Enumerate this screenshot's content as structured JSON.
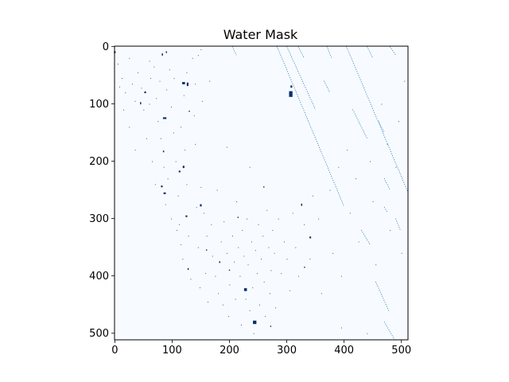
{
  "chart_data": {
    "type": "heatmap",
    "title": "Water Mask",
    "xlabel": "",
    "ylabel": "",
    "x_ticks": [
      0,
      100,
      200,
      300,
      400,
      500
    ],
    "y_ticks": [
      0,
      100,
      200,
      300,
      400,
      500
    ],
    "xlim": [
      -0.5,
      511.5
    ],
    "ylim": [
      511.5,
      -0.5
    ],
    "image_size": [
      512,
      512
    ],
    "colormap": "Blues",
    "colors": {
      "background": "#f7fbff",
      "water": "#08306b",
      "mid": "#2171b5"
    },
    "grid": false,
    "legend": "none",
    "blobs": [
      {
        "x": 307,
        "y": 83,
        "w": 6,
        "h": 10
      },
      {
        "x": 308,
        "y": 70,
        "w": 3,
        "h": 4
      },
      {
        "x": 244,
        "y": 481,
        "w": 6,
        "h": 6
      },
      {
        "x": 228,
        "y": 424,
        "w": 5,
        "h": 5
      },
      {
        "x": 87,
        "y": 125,
        "w": 6,
        "h": 3
      },
      {
        "x": 120,
        "y": 64,
        "w": 5,
        "h": 4
      },
      {
        "x": 127,
        "y": 66,
        "w": 3,
        "h": 6
      },
      {
        "x": 87,
        "y": 256,
        "w": 4,
        "h": 3
      },
      {
        "x": 82,
        "y": 244,
        "w": 3,
        "h": 3
      },
      {
        "x": 120,
        "y": 210,
        "w": 3,
        "h": 4
      },
      {
        "x": 113,
        "y": 218,
        "w": 3,
        "h": 3
      },
      {
        "x": 150,
        "y": 277,
        "w": 3,
        "h": 4
      },
      {
        "x": 125,
        "y": 296,
        "w": 3,
        "h": 3
      },
      {
        "x": 53,
        "y": 80,
        "w": 3,
        "h": 3
      },
      {
        "x": 45,
        "y": 99,
        "w": 2,
        "h": 4
      },
      {
        "x": 326,
        "y": 276,
        "w": 2,
        "h": 4
      },
      {
        "x": 341,
        "y": 333,
        "w": 3,
        "h": 3
      },
      {
        "x": 331,
        "y": 385,
        "w": 2,
        "h": 2
      },
      {
        "x": 272,
        "y": 488,
        "w": 2,
        "h": 2
      },
      {
        "x": 85,
        "y": 183,
        "w": 2,
        "h": 3
      },
      {
        "x": 0,
        "y": 10,
        "w": 3,
        "h": 3
      },
      {
        "x": 83,
        "y": 14,
        "w": 2,
        "h": 4
      },
      {
        "x": 90,
        "y": 10,
        "w": 2,
        "h": 3
      },
      {
        "x": 183,
        "y": 376,
        "w": 2,
        "h": 3
      },
      {
        "x": 200,
        "y": 390,
        "w": 2,
        "h": 2
      },
      {
        "x": 160,
        "y": 355,
        "w": 2,
        "h": 2
      },
      {
        "x": 215,
        "y": 298,
        "w": 2,
        "h": 2
      },
      {
        "x": 128,
        "y": 388,
        "w": 2,
        "h": 3
      },
      {
        "x": 260,
        "y": 245,
        "w": 2,
        "h": 2
      },
      {
        "x": 130,
        "y": 113,
        "w": 2,
        "h": 2
      }
    ],
    "streaks": [
      {
        "x1": 283,
        "y1": 0,
        "x2": 400,
        "y2": 279
      },
      {
        "x1": 404,
        "y1": 0,
        "x2": 511,
        "y2": 253
      },
      {
        "x1": 300,
        "y1": 0,
        "x2": 350,
        "y2": 110
      },
      {
        "x1": 320,
        "y1": 0,
        "x2": 330,
        "y2": 20
      },
      {
        "x1": 370,
        "y1": 0,
        "x2": 378,
        "y2": 20
      },
      {
        "x1": 440,
        "y1": 0,
        "x2": 450,
        "y2": 20
      },
      {
        "x1": 480,
        "y1": 0,
        "x2": 490,
        "y2": 15
      },
      {
        "x1": 455,
        "y1": 410,
        "x2": 478,
        "y2": 461
      },
      {
        "x1": 470,
        "y1": 480,
        "x2": 488,
        "y2": 511
      },
      {
        "x1": 415,
        "y1": 110,
        "x2": 440,
        "y2": 160
      },
      {
        "x1": 470,
        "y1": 230,
        "x2": 480,
        "y2": 250
      },
      {
        "x1": 430,
        "y1": 320,
        "x2": 445,
        "y2": 345
      },
      {
        "x1": 365,
        "y1": 60,
        "x2": 375,
        "y2": 80
      },
      {
        "x1": 205,
        "y1": 0,
        "x2": 212,
        "y2": 15
      },
      {
        "x1": 460,
        "y1": 130,
        "x2": 470,
        "y2": 150
      },
      {
        "x1": 490,
        "y1": 300,
        "x2": 498,
        "y2": 320
      },
      {
        "x1": 470,
        "y1": 280,
        "x2": 476,
        "y2": 290
      }
    ],
    "dots": [
      [
        5,
        30
      ],
      [
        12,
        55
      ],
      [
        18,
        80
      ],
      [
        25,
        20
      ],
      [
        30,
        65
      ],
      [
        35,
        95
      ],
      [
        40,
        45
      ],
      [
        46,
        72
      ],
      [
        50,
        110
      ],
      [
        60,
        100
      ],
      [
        62,
        55
      ],
      [
        68,
        35
      ],
      [
        72,
        90
      ],
      [
        75,
        130
      ],
      [
        78,
        60
      ],
      [
        80,
        160
      ],
      [
        85,
        210
      ],
      [
        88,
        275
      ],
      [
        92,
        230
      ],
      [
        95,
        40
      ],
      [
        98,
        105
      ],
      [
        102,
        150
      ],
      [
        106,
        200
      ],
      [
        110,
        260
      ],
      [
        112,
        310
      ],
      [
        115,
        345
      ],
      [
        118,
        370
      ],
      [
        120,
        85
      ],
      [
        122,
        180
      ],
      [
        125,
        240
      ],
      [
        128,
        330
      ],
      [
        132,
        405
      ],
      [
        135,
        20
      ],
      [
        138,
        120
      ],
      [
        140,
        170
      ],
      [
        142,
        280
      ],
      [
        145,
        350
      ],
      [
        148,
        420
      ],
      [
        150,
        5
      ],
      [
        152,
        95
      ],
      [
        155,
        290
      ],
      [
        158,
        395
      ],
      [
        160,
        330
      ],
      [
        162,
        445
      ],
      [
        165,
        60
      ],
      [
        168,
        310
      ],
      [
        170,
        365
      ],
      [
        175,
        400
      ],
      [
        178,
        250
      ],
      [
        180,
        430
      ],
      [
        185,
        340
      ],
      [
        188,
        450
      ],
      [
        190,
        305
      ],
      [
        195,
        360
      ],
      [
        198,
        470
      ],
      [
        200,
        415
      ],
      [
        205,
        330
      ],
      [
        208,
        375
      ],
      [
        210,
        440
      ],
      [
        212,
        270
      ],
      [
        215,
        350
      ],
      [
        218,
        400
      ],
      [
        220,
        485
      ],
      [
        222,
        320
      ],
      [
        225,
        365
      ],
      [
        228,
        440
      ],
      [
        230,
        300
      ],
      [
        232,
        380
      ],
      [
        235,
        460
      ],
      [
        238,
        340
      ],
      [
        240,
        420
      ],
      [
        242,
        500
      ],
      [
        245,
        355
      ],
      [
        248,
        395
      ],
      [
        250,
        310
      ],
      [
        252,
        450
      ],
      [
        255,
        370
      ],
      [
        258,
        330
      ],
      [
        260,
        410
      ],
      [
        262,
        470
      ],
      [
        265,
        285
      ],
      [
        268,
        350
      ],
      [
        270,
        430
      ],
      [
        272,
        390
      ],
      [
        275,
        320
      ],
      [
        278,
        360
      ],
      [
        280,
        455
      ],
      [
        285,
        300
      ],
      [
        290,
        395
      ],
      [
        295,
        340
      ],
      [
        300,
        370
      ],
      [
        305,
        425
      ],
      [
        310,
        290
      ],
      [
        315,
        350
      ],
      [
        320,
        400
      ],
      [
        330,
        310
      ],
      [
        340,
        370
      ],
      [
        345,
        260
      ],
      [
        355,
        300
      ],
      [
        360,
        430
      ],
      [
        375,
        250
      ],
      [
        380,
        360
      ],
      [
        390,
        210
      ],
      [
        395,
        400
      ],
      [
        405,
        180
      ],
      [
        410,
        290
      ],
      [
        420,
        230
      ],
      [
        425,
        340
      ],
      [
        445,
        200
      ],
      [
        450,
        270
      ],
      [
        455,
        380
      ],
      [
        465,
        100
      ],
      [
        475,
        170
      ],
      [
        480,
        320
      ],
      [
        490,
        210
      ],
      [
        495,
        130
      ],
      [
        500,
        360
      ],
      [
        505,
        60
      ],
      [
        440,
        500
      ],
      [
        395,
        490
      ],
      [
        25,
        140
      ],
      [
        15,
        110
      ],
      [
        8,
        70
      ],
      [
        35,
        180
      ],
      [
        55,
        160
      ],
      [
        65,
        200
      ],
      [
        70,
        240
      ],
      [
        98,
        300
      ],
      [
        108,
        320
      ],
      [
        115,
        140
      ],
      [
        140,
        65
      ],
      [
        145,
        15
      ],
      [
        125,
        45
      ],
      [
        103,
        55
      ],
      [
        90,
        75
      ],
      [
        60,
        25
      ],
      [
        150,
        245
      ],
      [
        195,
        175
      ],
      [
        235,
        210
      ]
    ]
  }
}
